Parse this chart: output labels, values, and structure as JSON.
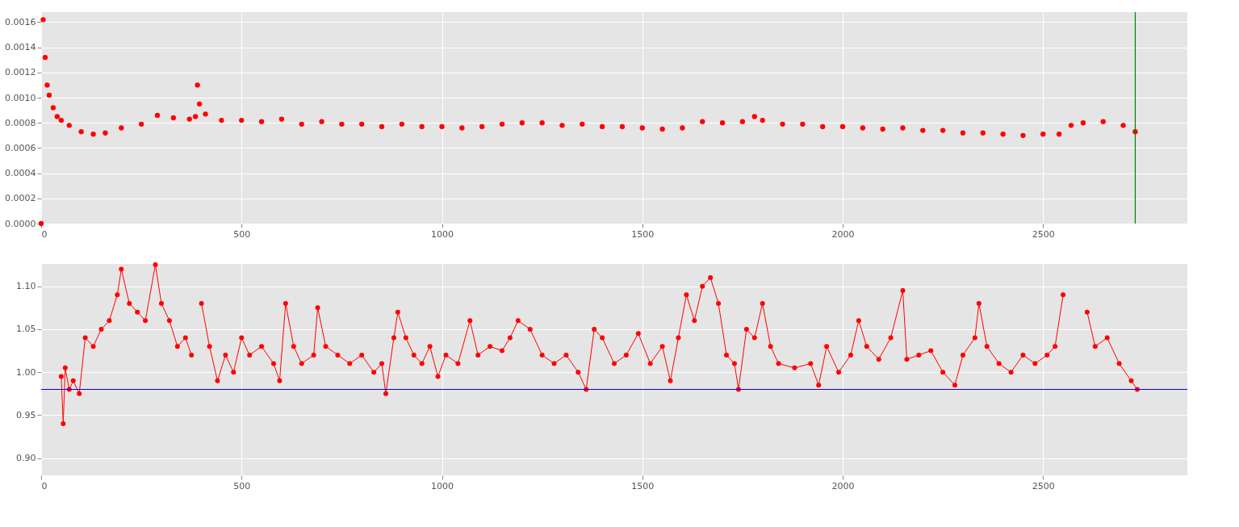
{
  "chart_data": [
    {
      "type": "scatter",
      "marker": "circle",
      "grid": true,
      "xlim": [
        0,
        2860
      ],
      "xticks": [
        0,
        500,
        1000,
        1500,
        2000,
        2500
      ],
      "ylim": [
        0,
        0.00168
      ],
      "yticks": [
        {
          "value": 0,
          "label": "0.0000"
        },
        {
          "value": 0.0002,
          "label": "0.0002"
        },
        {
          "value": 0.0004,
          "label": "0.0004"
        },
        {
          "value": 0.0006,
          "label": "0.0006"
        },
        {
          "value": 0.0008,
          "label": "0.0008"
        },
        {
          "value": 0.001,
          "label": "0.0010"
        },
        {
          "value": 0.0012,
          "label": "0.0012"
        },
        {
          "value": 0.0014,
          "label": "0.0014"
        },
        {
          "value": 0.0016,
          "label": "0.0016"
        }
      ],
      "ref_lines": [
        {
          "axis": "x",
          "value": 2730,
          "color": "#008000"
        }
      ],
      "series": [
        {
          "color": "#ff0000",
          "x": [
            0,
            5,
            10,
            15,
            20,
            30,
            40,
            50,
            70,
            100,
            130,
            160,
            200,
            250,
            290,
            330,
            370,
            385,
            390,
            395,
            410,
            450,
            500,
            550,
            600,
            650,
            700,
            750,
            800,
            850,
            900,
            950,
            1000,
            1050,
            1100,
            1150,
            1200,
            1250,
            1300,
            1350,
            1400,
            1450,
            1500,
            1550,
            1600,
            1650,
            1700,
            1750,
            1780,
            1800,
            1850,
            1900,
            1950,
            2000,
            2050,
            2100,
            2150,
            2200,
            2250,
            2300,
            2350,
            2400,
            2450,
            2500,
            2540,
            2570,
            2600,
            2650,
            2700,
            2730
          ],
          "values": [
            0,
            0.00162,
            0.00132,
            0.0011,
            0.00102,
            0.00092,
            0.00085,
            0.00082,
            0.00078,
            0.00073,
            0.00071,
            0.00072,
            0.00076,
            0.00079,
            0.00086,
            0.00084,
            0.00083,
            0.00085,
            0.0011,
            0.00095,
            0.00087,
            0.00082,
            0.00082,
            0.00081,
            0.00083,
            0.00079,
            0.00081,
            0.00079,
            0.00079,
            0.00077,
            0.00079,
            0.00077,
            0.00077,
            0.00076,
            0.00077,
            0.00079,
            0.0008,
            0.0008,
            0.00078,
            0.00079,
            0.00077,
            0.00077,
            0.00076,
            0.00075,
            0.00076,
            0.00081,
            0.0008,
            0.00081,
            0.00085,
            0.00082,
            0.00079,
            0.00079,
            0.00077,
            0.00077,
            0.00076,
            0.00075,
            0.00076,
            0.00074,
            0.00074,
            0.00072,
            0.00072,
            0.00071,
            0.0007,
            0.00071,
            0.00071,
            0.00078,
            0.0008,
            0.00081,
            0.00078,
            0.00073
          ]
        }
      ]
    },
    {
      "type": "line",
      "marker": "circle",
      "grid": true,
      "xlim": [
        0,
        2860
      ],
      "xticks": [
        0,
        500,
        1000,
        1500,
        2000,
        2500
      ],
      "ylim": [
        0.88,
        1.126
      ],
      "yticks": [
        {
          "value": 0.9,
          "label": "0.90"
        },
        {
          "value": 0.95,
          "label": "0.95"
        },
        {
          "value": 1,
          "label": "1.00"
        },
        {
          "value": 1.05,
          "label": "1.05"
        },
        {
          "value": 1.1,
          "label": "1.10"
        }
      ],
      "ref_lines": [
        {
          "axis": "y",
          "value": 0.98,
          "color": "#0000ff"
        }
      ],
      "series": [
        {
          "color": "#ff0000",
          "x": [
            50,
            55,
            60,
            70,
            80,
            95,
            110,
            130,
            150,
            170,
            190,
            200,
            220,
            240,
            260,
            285,
            300,
            320,
            340,
            360,
            375,
            390,
            400,
            420,
            440,
            460,
            480,
            500,
            520,
            550,
            580,
            595,
            610,
            630,
            650,
            680,
            690,
            710,
            740,
            770,
            800,
            830,
            850,
            860,
            880,
            890,
            910,
            930,
            950,
            970,
            990,
            1010,
            1040,
            1070,
            1090,
            1120,
            1150,
            1170,
            1190,
            1220,
            1250,
            1280,
            1310,
            1340,
            1360,
            1380,
            1400,
            1430,
            1460,
            1490,
            1520,
            1550,
            1570,
            1590,
            1610,
            1630,
            1650,
            1670,
            1690,
            1710,
            1730,
            1740,
            1760,
            1780,
            1800,
            1820,
            1840,
            1880,
            1920,
            1940,
            1960,
            1990,
            2020,
            2040,
            2060,
            2090,
            2120,
            2150,
            2160,
            2190,
            2220,
            2250,
            2280,
            2300,
            2330,
            2340,
            2360,
            2390,
            2420,
            2450,
            2480,
            2510,
            2530,
            2550,
            2560,
            2590,
            2610,
            2630,
            2660,
            2690,
            2720,
            2735
          ],
          "values": [
            0.995,
            0.94,
            1.005,
            0.98,
            0.99,
            0.975,
            1.04,
            1.03,
            1.05,
            1.06,
            1.09,
            1.12,
            1.08,
            1.07,
            1.06,
            1.125,
            1.08,
            1.06,
            1.03,
            1.04,
            1.02,
            null,
            1.08,
            1.03,
            0.99,
            1.02,
            1.0,
            1.04,
            1.02,
            1.03,
            1.01,
            0.99,
            1.08,
            1.03,
            1.01,
            1.02,
            1.075,
            1.03,
            1.02,
            1.01,
            1.02,
            1.0,
            1.01,
            0.975,
            1.04,
            1.07,
            1.04,
            1.02,
            1.01,
            1.03,
            0.995,
            1.02,
            1.01,
            1.06,
            1.02,
            1.03,
            1.025,
            1.04,
            1.06,
            1.05,
            1.02,
            1.01,
            1.02,
            1.0,
            0.98,
            1.05,
            1.04,
            1.01,
            1.02,
            1.045,
            1.01,
            1.03,
            0.99,
            1.04,
            1.09,
            1.06,
            1.1,
            1.11,
            1.08,
            1.02,
            1.01,
            0.98,
            1.05,
            1.04,
            1.08,
            1.03,
            1.01,
            1.005,
            1.01,
            0.985,
            1.03,
            1.0,
            1.02,
            1.06,
            1.03,
            1.015,
            1.04,
            1.095,
            1.015,
            1.02,
            1.025,
            1.0,
            0.985,
            1.02,
            1.04,
            1.08,
            1.03,
            1.01,
            1.0,
            1.02,
            1.01,
            1.02,
            1.03,
            1.09,
            null,
            null,
            1.07,
            1.03,
            1.04,
            1.01,
            0.99,
            0.98
          ]
        }
      ]
    }
  ]
}
